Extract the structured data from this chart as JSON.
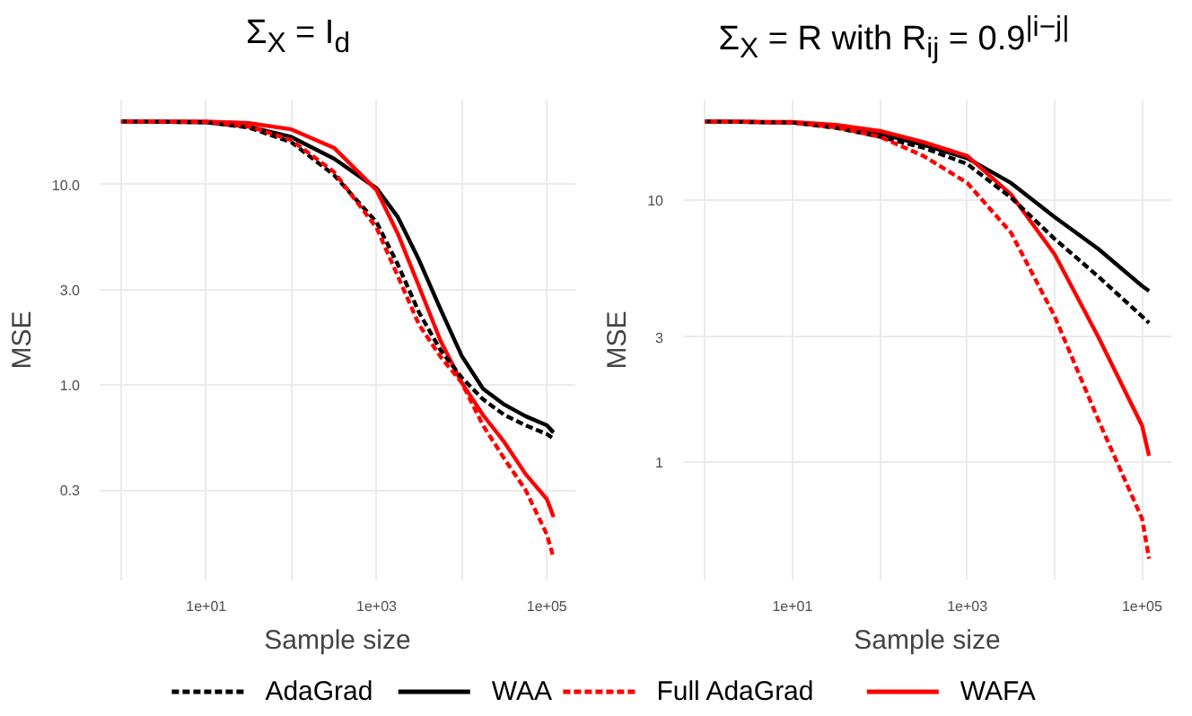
{
  "chart_data": [
    {
      "type": "line",
      "title": "Σ$_{X}$ = I$_{d}$",
      "xlabel": "Sample size",
      "ylabel": "MSE",
      "log": "xy",
      "grid": true,
      "legend": "bottom",
      "x": [
        1,
        10,
        31.6,
        100,
        316,
        1000,
        1778,
        3162,
        5623,
        10000,
        17783,
        31623,
        56234,
        100000,
        120000
      ],
      "xlim": [
        0.56,
        216000
      ],
      "ylim": [
        0.106,
        26.6
      ],
      "xticks": [
        {
          "value": 1,
          "label": null
        },
        {
          "value": 10,
          "label": "1e+01"
        },
        {
          "value": 100,
          "label": null
        },
        {
          "value": 1000,
          "label": "1e+03"
        },
        {
          "value": 10000,
          "label": null
        },
        {
          "value": 100000,
          "label": "1e+05"
        }
      ],
      "yticks": [
        {
          "value": 0.3,
          "label": "0.3"
        },
        {
          "value": 1,
          "label": "1.0"
        },
        {
          "value": 3,
          "label": "3.0"
        },
        {
          "value": 10,
          "label": "10.0"
        }
      ],
      "series": [
        {
          "name": "AdaGrad",
          "color": "#000000",
          "line_style": "dashed",
          "values": [
            20.7,
            20.5,
            19.3,
            16.3,
            11.2,
            6.5,
            4.0,
            2.3,
            1.5,
            1.09,
            0.85,
            0.71,
            0.63,
            0.57,
            0.54
          ]
        },
        {
          "name": "WAA",
          "color": "#000000",
          "line_style": "solid",
          "values": [
            20.7,
            20.5,
            19.5,
            17.3,
            13.5,
            9.6,
            6.9,
            4.2,
            2.4,
            1.4,
            0.96,
            0.8,
            0.7,
            0.63,
            0.58
          ]
        },
        {
          "name": "Full AdaGrad",
          "color": "#ff0000",
          "line_style": "dashed",
          "values": [
            20.7,
            20.6,
            19.6,
            16.7,
            11.6,
            6.1,
            3.5,
            2.0,
            1.39,
            1.03,
            0.63,
            0.43,
            0.3,
            0.18,
            0.137
          ]
        },
        {
          "name": "WAFA",
          "color": "#ff0000",
          "line_style": "solid",
          "values": [
            20.7,
            20.7,
            20.3,
            18.9,
            15.3,
            9.4,
            5.7,
            3.1,
            1.67,
            1.03,
            0.71,
            0.52,
            0.36,
            0.27,
            0.22
          ]
        }
      ]
    },
    {
      "type": "line",
      "title": "Σ$_{X}$ = R with R$_{ij}$ = 0.9$^{|i−j|}$",
      "xlabel": "Sample size",
      "ylabel": "MSE",
      "log": "xy",
      "grid": true,
      "x": [
        1,
        10,
        31.6,
        100,
        316,
        1000,
        3162,
        10000,
        31623,
        100000,
        120000
      ],
      "xlim": [
        0.56,
        216000
      ],
      "ylim": [
        0.355,
        24.1
      ],
      "xticks": [
        {
          "value": 1,
          "label": null
        },
        {
          "value": 10,
          "label": "1e+01"
        },
        {
          "value": 100,
          "label": null
        },
        {
          "value": 1000,
          "label": "1e+03"
        },
        {
          "value": 10000,
          "label": null
        },
        {
          "value": 100000,
          "label": "1e+05"
        }
      ],
      "yticks": [
        1,
        3,
        10
      ],
      "series": [
        {
          "color": "#000000",
          "line_style": "dashed",
          "values": [
            19.9,
            19.7,
            18.8,
            17.4,
            15.8,
            13.7,
            10.2,
            7.1,
            5.1,
            3.6,
            3.4
          ]
        },
        {
          "color": "#000000",
          "line_style": "solid",
          "values": [
            19.9,
            19.7,
            19.0,
            17.9,
            16.2,
            14.4,
            11.6,
            8.6,
            6.5,
            4.7,
            4.5
          ]
        },
        {
          "color": "#ff0000",
          "line_style": "dashed",
          "values": [
            19.9,
            19.7,
            18.9,
            17.4,
            14.7,
            11.6,
            7.5,
            3.6,
            1.45,
            0.61,
            0.43
          ]
        },
        {
          "color": "#ff0000",
          "line_style": "solid",
          "values": [
            19.9,
            19.8,
            19.3,
            18.3,
            16.6,
            14.7,
            10.5,
            6.2,
            3.0,
            1.38,
            1.06
          ]
        }
      ]
    }
  ]
}
